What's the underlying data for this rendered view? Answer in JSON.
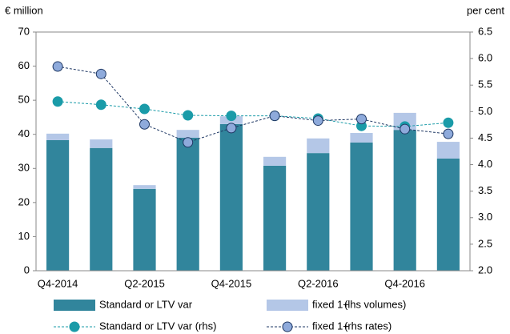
{
  "chart_data": {
    "type": "bar",
    "y_label": "€ million",
    "y2_label": "per cent",
    "categories": [
      "Q4-2014",
      null,
      "Q2-2015",
      null,
      "Q4-2015",
      null,
      "Q2-2016",
      null,
      "Q4-2016",
      null
    ],
    "ylim": [
      0,
      70
    ],
    "yticks": [
      0,
      10,
      20,
      30,
      40,
      50,
      60,
      70
    ],
    "y2lim": [
      2.0,
      6.5
    ],
    "y2ticks": [
      {
        "value": 2.0,
        "label": "2.0"
      },
      {
        "value": 2.5,
        "label": "2.5"
      },
      {
        "value": 3.0,
        "label": "3.0"
      },
      {
        "value": 3.5,
        "label": "3.5"
      },
      {
        "value": 4.0,
        "label": "4.0"
      },
      {
        "value": 4.5,
        "label": "4.5"
      },
      {
        "value": 5.0,
        "label": "5.0"
      },
      {
        "value": 5.5,
        "label": "5.5"
      },
      {
        "value": 6.0,
        "label": "6.0"
      },
      {
        "value": 6.5,
        "label": "6.5"
      }
    ],
    "grid": false,
    "series": [
      {
        "name": "Standard or LTV var",
        "type": "bar",
        "color": "#31859c",
        "values": [
          38.3,
          36.0,
          24.0,
          39.0,
          43.0,
          30.8,
          34.5,
          37.6,
          41.3,
          32.9
        ]
      },
      {
        "name": "fixed 1+",
        "note": "(lhs volumes)",
        "type": "bar",
        "color": "#b4c7e7",
        "values": [
          1.9,
          2.5,
          1.1,
          2.3,
          2.3,
          2.6,
          4.3,
          2.8,
          5.0,
          4.9
        ]
      },
      {
        "name": "Standard or LTV var (rhs)",
        "type": "line",
        "axis": "y2",
        "color": "#1a9ba8",
        "marker_color": "#1a9ba8",
        "values": [
          5.19,
          5.13,
          5.05,
          4.93,
          4.92,
          4.92,
          4.87,
          4.73,
          4.72,
          4.79
        ]
      },
      {
        "name": "fixed 1+",
        "note": "(rhs rates)",
        "type": "line",
        "axis": "y2",
        "color": "#1f3864",
        "marker_color": "#8eaadb",
        "values": [
          5.85,
          5.71,
          4.76,
          4.42,
          4.69,
          4.92,
          4.83,
          4.86,
          4.67,
          4.58
        ]
      }
    ]
  }
}
